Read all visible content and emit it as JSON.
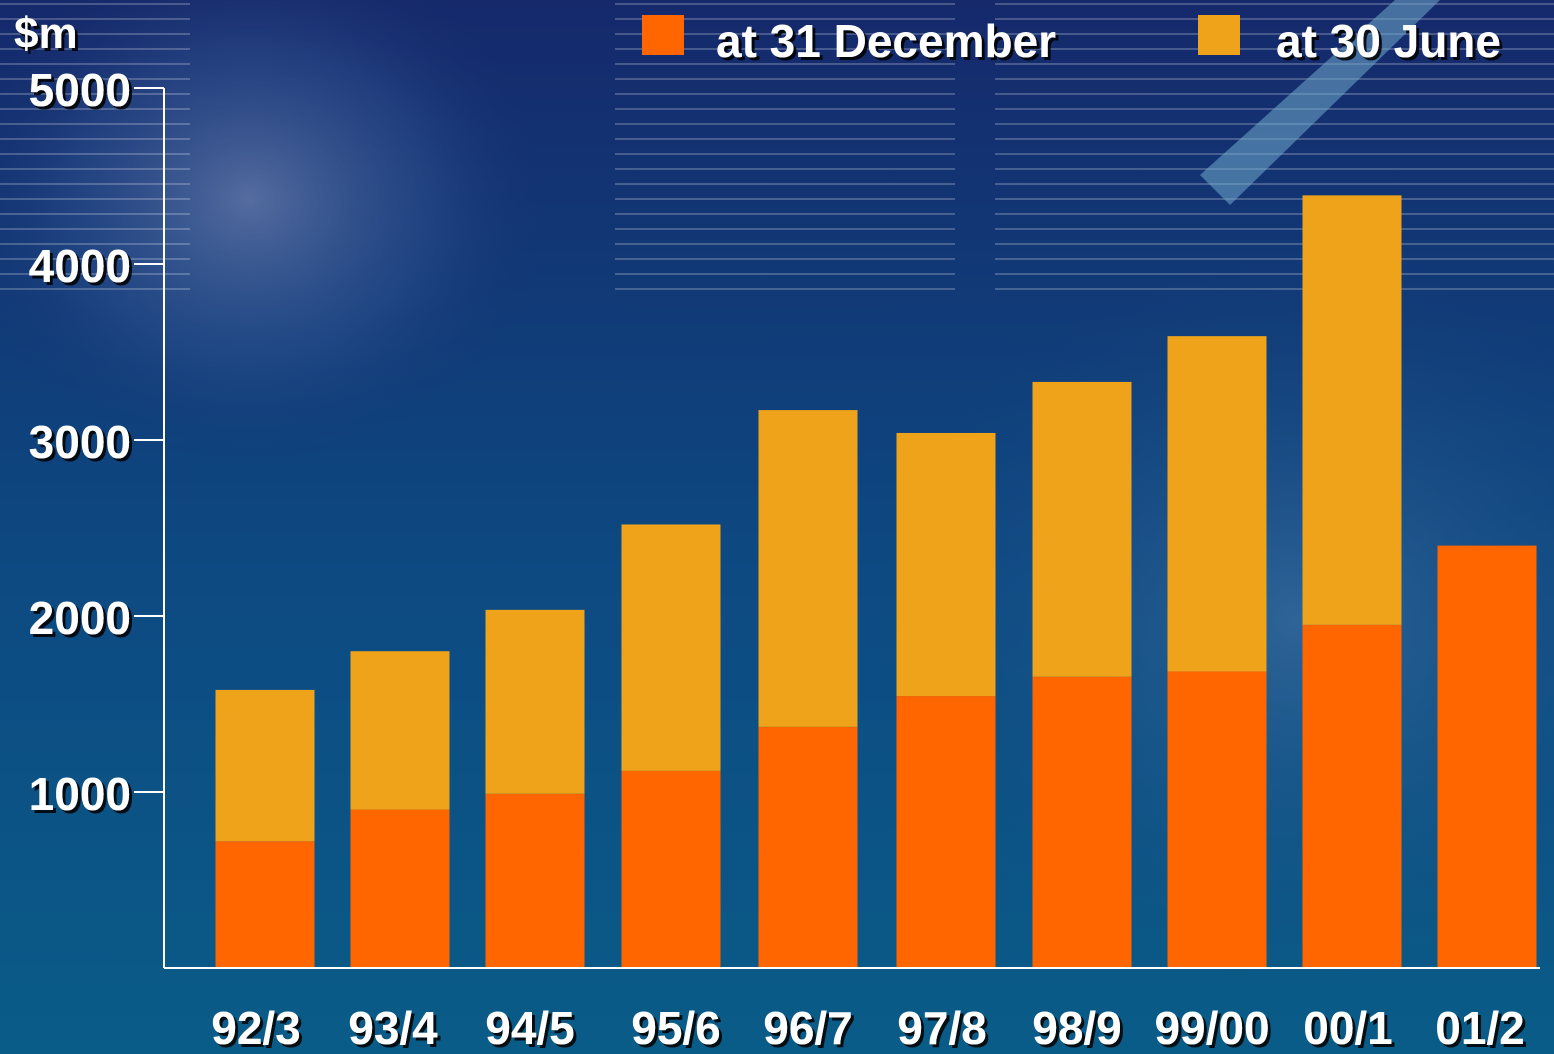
{
  "chart_data": {
    "type": "bar",
    "stacked": true,
    "ylabel": "$m",
    "ylim": [
      0,
      5000
    ],
    "yticks": [
      1000,
      2000,
      3000,
      4000,
      5000
    ],
    "grid": false,
    "legend_placement": "top-right",
    "categories": [
      "92/3",
      "93/4",
      "94/5",
      "95/6",
      "96/7",
      "97/8",
      "98/9",
      "99/00",
      "00/1",
      "01/2"
    ],
    "series": [
      {
        "name": "at 31 December",
        "color": "#ff6600",
        "values": [
          720,
          900,
          990,
          1120,
          1370,
          1545,
          1655,
          1685,
          1950,
          2400
        ]
      },
      {
        "name": "at 30 June",
        "color": "#eea31a",
        "values": [
          860,
          900,
          1045,
          1400,
          1800,
          1495,
          1675,
          1905,
          2440,
          0
        ]
      }
    ]
  },
  "colors": {
    "background_top": "#142a6b",
    "background_bottom": "#0a5a86",
    "text": "#ffffff",
    "axis": "#ffffff"
  }
}
